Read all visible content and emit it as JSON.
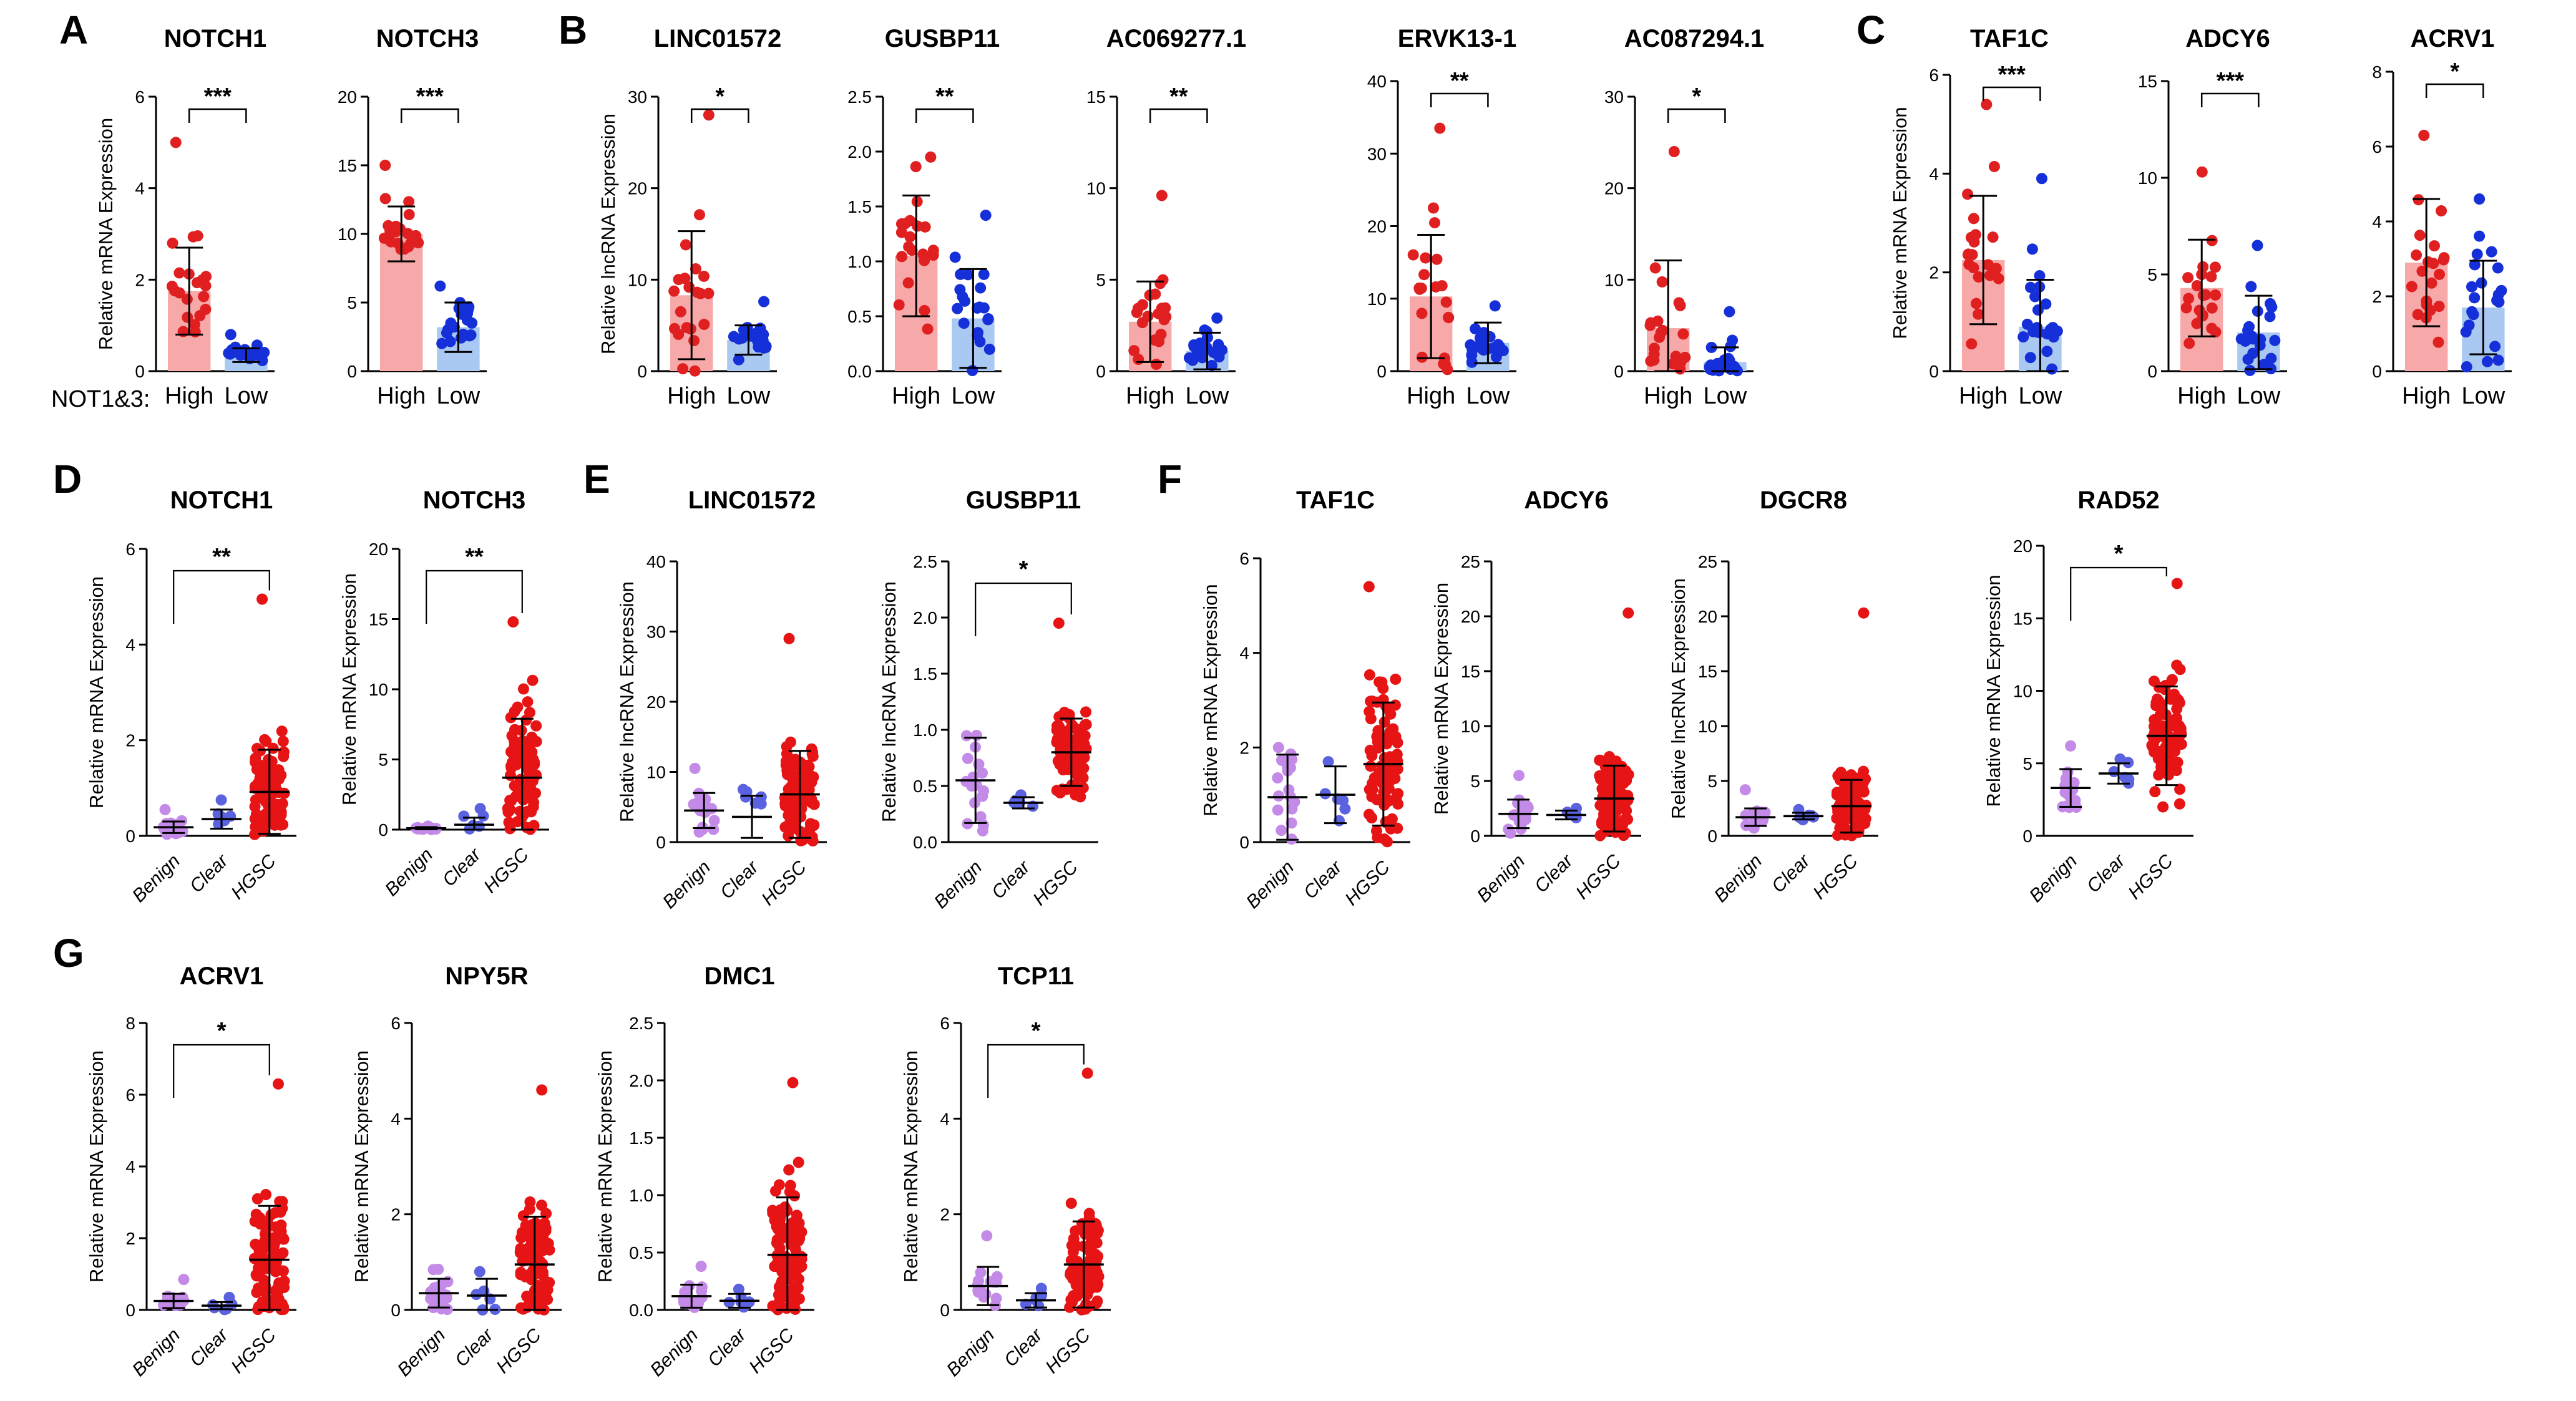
{
  "figure": {
    "colors": {
      "high_fill": "#f7a8a8",
      "high_dot": "#e02020",
      "low_fill": "#a9c8f2",
      "low_dot": "#1530d8",
      "benign_dot": "#c48ae8",
      "clear_dot": "#5a62e0",
      "hgsc_dot": "#e61414",
      "axis": "#000000"
    },
    "group_row_label": "NOT1&3:"
  },
  "chart_data": [
    {
      "id": "A1",
      "panel_label": "A",
      "title": "NOTCH1",
      "ylabel": "Relative mRNA Expression",
      "ylim": [
        0,
        6
      ],
      "yticks": [
        "0",
        "2",
        "4",
        "6"
      ],
      "type": "bar",
      "categories": [
        "High",
        "Low"
      ],
      "values": [
        1.75,
        0.35
      ],
      "sd": [
        0.95,
        0.15
      ],
      "max_points": [
        5.0,
        0.8
      ],
      "significance": "***"
    },
    {
      "id": "A2",
      "panel_label": "",
      "title": "NOTCH3",
      "ylabel": "",
      "ylim": [
        0,
        20
      ],
      "yticks": [
        "0",
        "5",
        "10",
        "15",
        "20"
      ],
      "type": "bar",
      "categories": [
        "High",
        "Low"
      ],
      "values": [
        10.0,
        3.2
      ],
      "sd": [
        2.0,
        1.8
      ],
      "max_points": [
        15.0,
        6.2
      ],
      "significance": "***"
    },
    {
      "id": "B1",
      "panel_label": "B",
      "title": "LINC01572",
      "ylabel": "Relative lncRNA Expression",
      "ylim": [
        0,
        30
      ],
      "yticks": [
        "0",
        "10",
        "20",
        "30"
      ],
      "type": "bar",
      "categories": [
        "High",
        "Low"
      ],
      "values": [
        8.3,
        3.4
      ],
      "sd": [
        7.0,
        1.6
      ],
      "max_points": [
        28.0,
        7.6
      ],
      "significance": "*"
    },
    {
      "id": "B2",
      "panel_label": "",
      "title": "GUSBP11",
      "ylabel": "",
      "ylim": [
        0,
        2.5
      ],
      "yticks": [
        "0.0",
        "0.5",
        "1.0",
        "1.5",
        "2.0",
        "2.5"
      ],
      "type": "bar",
      "categories": [
        "High",
        "Low"
      ],
      "values": [
        1.05,
        0.48
      ],
      "sd": [
        0.55,
        0.45
      ],
      "max_points": [
        1.95,
        1.42
      ],
      "significance": "**"
    },
    {
      "id": "B3",
      "panel_label": "",
      "title": "AC069277.1",
      "ylabel": "",
      "ylim": [
        0,
        15
      ],
      "yticks": [
        "0",
        "5",
        "10",
        "15"
      ],
      "type": "bar",
      "categories": [
        "High",
        "Low"
      ],
      "values": [
        2.7,
        1.1
      ],
      "sd": [
        2.2,
        1.0
      ],
      "max_points": [
        9.6,
        2.9
      ],
      "significance": "**"
    },
    {
      "id": "B4",
      "panel_label": "",
      "title": "ERVK13-1",
      "ylabel": "",
      "ylim": [
        0,
        40
      ],
      "yticks": [
        "0",
        "10",
        "20",
        "30",
        "40"
      ],
      "type": "bar",
      "categories": [
        "High",
        "Low"
      ],
      "values": [
        10.3,
        3.9
      ],
      "sd": [
        8.5,
        2.8
      ],
      "max_points": [
        33.5,
        9.0
      ],
      "significance": "**"
    },
    {
      "id": "B5",
      "panel_label": "",
      "title": "AC087294.1",
      "ylabel": "",
      "ylim": [
        0,
        30
      ],
      "yticks": [
        "0",
        "10",
        "20",
        "30"
      ],
      "type": "bar",
      "categories": [
        "High",
        "Low"
      ],
      "values": [
        4.7,
        1.0
      ],
      "sd": [
        7.4,
        1.6
      ],
      "max_points": [
        24.0,
        6.5
      ],
      "significance": "*"
    },
    {
      "id": "C1",
      "panel_label": "C",
      "title": "TAF1C",
      "ylabel": "Relative mRNA Expression",
      "ylim": [
        0,
        6
      ],
      "yticks": [
        "0",
        "2",
        "4",
        "6"
      ],
      "type": "bar",
      "categories": [
        "High",
        "Low"
      ],
      "values": [
        2.25,
        0.9
      ],
      "sd": [
        1.3,
        0.95
      ],
      "max_points": [
        5.4,
        3.9
      ],
      "significance": "***"
    },
    {
      "id": "C2",
      "panel_label": "",
      "title": "ADCY6",
      "ylabel": "",
      "ylim": [
        0,
        15
      ],
      "yticks": [
        "0",
        "5",
        "10",
        "15"
      ],
      "type": "bar",
      "categories": [
        "High",
        "Low"
      ],
      "values": [
        4.3,
        2.0
      ],
      "sd": [
        2.5,
        1.9
      ],
      "max_points": [
        10.3,
        6.5
      ],
      "significance": "***"
    },
    {
      "id": "C3",
      "panel_label": "",
      "title": "ACRV1",
      "ylabel": "",
      "ylim": [
        0,
        8
      ],
      "yticks": [
        "0",
        "2",
        "4",
        "6",
        "8"
      ],
      "type": "bar",
      "categories": [
        "High",
        "Low"
      ],
      "values": [
        2.9,
        1.7
      ],
      "sd": [
        1.7,
        1.25
      ],
      "max_points": [
        6.3,
        4.6
      ],
      "significance": "*"
    },
    {
      "id": "D1",
      "panel_label": "D",
      "title": "NOTCH1",
      "ylabel": "Relative mRNA Expression",
      "ylim": [
        0,
        6
      ],
      "yticks": [
        "0",
        "2",
        "4",
        "6"
      ],
      "type": "scatter",
      "categories": [
        "Benign",
        "Clear",
        "HGSC"
      ],
      "means": [
        0.18,
        0.35,
        0.92
      ],
      "sd": [
        0.12,
        0.2,
        0.88
      ],
      "max_points": [
        0.55,
        0.75,
        4.95
      ],
      "significance": "**",
      "compare": [
        0,
        2
      ]
    },
    {
      "id": "D2",
      "panel_label": "",
      "title": "NOTCH3",
      "ylabel": "Relative mRNA Expression",
      "ylim": [
        0,
        20
      ],
      "yticks": [
        "0",
        "5",
        "10",
        "15",
        "20"
      ],
      "type": "scatter",
      "categories": [
        "Benign",
        "Clear",
        "HGSC"
      ],
      "means": [
        0.1,
        0.35,
        3.7
      ],
      "sd": [
        0.08,
        0.5,
        4.2
      ],
      "max_points": [
        0.25,
        1.5,
        14.8
      ],
      "significance": "**",
      "compare": [
        0,
        2
      ]
    },
    {
      "id": "E1",
      "panel_label": "E",
      "title": "LINC01572",
      "ylabel": "Relative lncRNA Expression",
      "ylim": [
        0,
        40
      ],
      "yticks": [
        "0",
        "10",
        "20",
        "30",
        "40"
      ],
      "type": "scatter",
      "categories": [
        "Benign",
        "Clear",
        "HGSC"
      ],
      "means": [
        4.5,
        3.6,
        6.8
      ],
      "sd": [
        2.5,
        3.0,
        6.2
      ],
      "max_points": [
        10.5,
        7.5,
        29.0
      ],
      "significance": "",
      "compare": null
    },
    {
      "id": "E2",
      "panel_label": "",
      "title": "GUSBP11",
      "ylabel": "Relative lncRNA Expression",
      "ylim": [
        0,
        2.5
      ],
      "yticks": [
        "0.0",
        "0.5",
        "1.0",
        "1.5",
        "2.0",
        "2.5"
      ],
      "type": "scatter",
      "categories": [
        "Benign",
        "Clear",
        "HGSC"
      ],
      "means": [
        0.55,
        0.35,
        0.8
      ],
      "sd": [
        0.38,
        0.05,
        0.3
      ],
      "max_points": [
        0.95,
        0.42,
        1.95
      ],
      "significance": "*",
      "compare": [
        0,
        2
      ]
    },
    {
      "id": "F1",
      "panel_label": "F",
      "title": "TAF1C",
      "ylabel": "Relative mRNA Expression",
      "ylim": [
        0,
        6
      ],
      "yticks": [
        "0",
        "2",
        "4",
        "6"
      ],
      "type": "scatter",
      "categories": [
        "Benign",
        "Clear",
        "HGSC"
      ],
      "means": [
        0.95,
        1.0,
        1.65
      ],
      "sd": [
        0.9,
        0.6,
        1.3
      ],
      "max_points": [
        2.0,
        1.7,
        5.4
      ],
      "significance": "",
      "compare": null
    },
    {
      "id": "F2",
      "panel_label": "",
      "title": "ADCY6",
      "ylabel": "Relative mRNA Expression",
      "ylim": [
        0,
        25
      ],
      "yticks": [
        "0",
        "5",
        "10",
        "15",
        "20",
        "25"
      ],
      "type": "scatter",
      "categories": [
        "Benign",
        "Clear",
        "HGSC"
      ],
      "means": [
        2.0,
        1.9,
        3.4
      ],
      "sd": [
        1.3,
        0.4,
        3.0
      ],
      "max_points": [
        5.5,
        2.5,
        20.3
      ],
      "significance": "",
      "compare": null
    },
    {
      "id": "F3",
      "panel_label": "",
      "title": "DGCR8",
      "ylabel": "Relative lncRNA Expression",
      "ylim": [
        0,
        25
      ],
      "yticks": [
        "0",
        "5",
        "10",
        "15",
        "20",
        "25"
      ],
      "type": "scatter",
      "categories": [
        "Benign",
        "Clear",
        "HGSC"
      ],
      "means": [
        1.7,
        1.8,
        2.7
      ],
      "sd": [
        0.8,
        0.3,
        2.4
      ],
      "max_points": [
        4.2,
        2.4,
        20.3
      ],
      "significance": "",
      "compare": null
    },
    {
      "id": "F4",
      "panel_label": "",
      "title": "RAD52",
      "ylabel": "Relative mRNA Expression",
      "ylim": [
        0,
        20
      ],
      "yticks": [
        "0",
        "5",
        "10",
        "15",
        "20"
      ],
      "type": "scatter",
      "categories": [
        "Benign",
        "Clear",
        "HGSC"
      ],
      "means": [
        3.3,
        4.3,
        6.9
      ],
      "sd": [
        1.3,
        0.7,
        3.4
      ],
      "max_points": [
        6.2,
        5.3,
        17.4
      ],
      "significance": "*",
      "compare": [
        0,
        2
      ]
    },
    {
      "id": "G1",
      "panel_label": "G",
      "title": "ACRV1",
      "ylabel": "Relative mRNA Expression",
      "ylim": [
        0,
        8
      ],
      "yticks": [
        "0",
        "2",
        "4",
        "6",
        "8"
      ],
      "type": "scatter",
      "categories": [
        "Benign",
        "Clear",
        "HGSC"
      ],
      "means": [
        0.25,
        0.12,
        1.4
      ],
      "sd": [
        0.2,
        0.1,
        1.5
      ],
      "max_points": [
        0.85,
        0.35,
        6.3
      ],
      "significance": "*",
      "compare": [
        0,
        2
      ]
    },
    {
      "id": "G2",
      "panel_label": "",
      "title": "NPY5R",
      "ylabel": "Relative mRNA Expression",
      "ylim": [
        0,
        6
      ],
      "yticks": [
        "0",
        "2",
        "4",
        "6"
      ],
      "type": "scatter",
      "categories": [
        "Benign",
        "Clear",
        "HGSC"
      ],
      "means": [
        0.35,
        0.3,
        0.95
      ],
      "sd": [
        0.3,
        0.35,
        1.0
      ],
      "max_points": [
        0.85,
        0.8,
        4.6
      ],
      "significance": "",
      "compare": null
    },
    {
      "id": "G3",
      "panel_label": "",
      "title": "DMC1",
      "ylabel": "Relative mRNA Expression",
      "ylim": [
        0,
        2.5
      ],
      "yticks": [
        "0.0",
        "0.5",
        "1.0",
        "1.5",
        "2.0",
        "2.5"
      ],
      "type": "scatter",
      "categories": [
        "Benign",
        "Clear",
        "HGSC"
      ],
      "means": [
        0.12,
        0.08,
        0.48
      ],
      "sd": [
        0.1,
        0.06,
        0.5
      ],
      "max_points": [
        0.38,
        0.18,
        1.98
      ],
      "significance": "",
      "compare": null
    },
    {
      "id": "G4",
      "panel_label": "",
      "title": "TCP11",
      "ylabel": "Relative mRNA Expression",
      "ylim": [
        0,
        6
      ],
      "yticks": [
        "0",
        "2",
        "4",
        "6"
      ],
      "type": "scatter",
      "categories": [
        "Benign",
        "Clear",
        "HGSC"
      ],
      "means": [
        0.5,
        0.2,
        0.95
      ],
      "sd": [
        0.4,
        0.15,
        0.9
      ],
      "max_points": [
        1.55,
        0.45,
        4.95
      ],
      "significance": "*",
      "compare": [
        0,
        2
      ]
    }
  ]
}
